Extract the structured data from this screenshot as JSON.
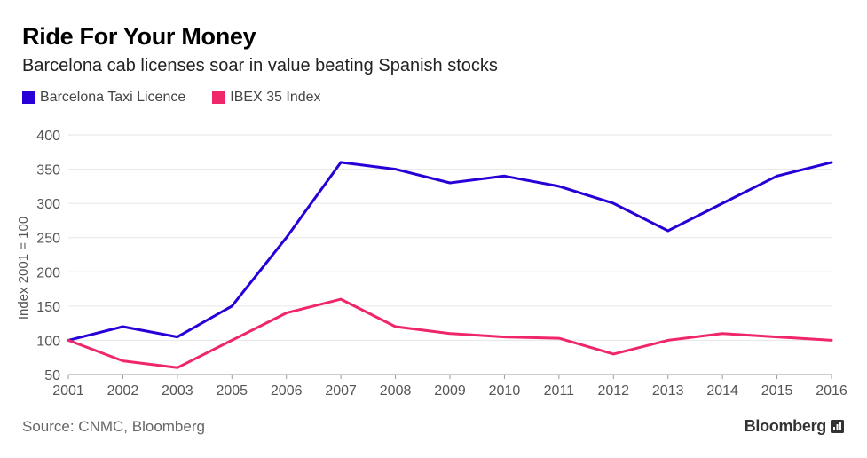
{
  "chart_data": {
    "type": "line",
    "title": "Ride For Your Money",
    "subtitle": "Barcelona cab licenses soar in value beating Spanish stocks",
    "xlabel": "",
    "ylabel": "Index 2001 = 100",
    "ylim": [
      50,
      400
    ],
    "yticks": [
      50,
      100,
      150,
      200,
      250,
      300,
      350,
      400
    ],
    "grid": true,
    "legend_position": "top-left",
    "x": [
      "2001",
      "2002",
      "2003",
      "2005",
      "2006",
      "2007",
      "2008",
      "2009",
      "2010",
      "2011",
      "2012",
      "2013",
      "2014",
      "2015",
      "2016"
    ],
    "series": [
      {
        "name": "Barcelona Taxi Licence",
        "color": "#2800d7",
        "values": [
          100,
          120,
          105,
          150,
          250,
          360,
          350,
          330,
          340,
          325,
          300,
          260,
          300,
          340,
          360
        ]
      },
      {
        "name": "IBEX 35 Index",
        "color": "#f0266b",
        "values": [
          100,
          70,
          60,
          100,
          140,
          160,
          120,
          110,
          105,
          103,
          80,
          100,
          110,
          105,
          100
        ]
      }
    ]
  },
  "footer": {
    "source": "Source: CNMC, Bloomberg",
    "brand": "Bloomberg"
  },
  "icons": {
    "brand_mark": "bloomberg-terminal-icon"
  }
}
